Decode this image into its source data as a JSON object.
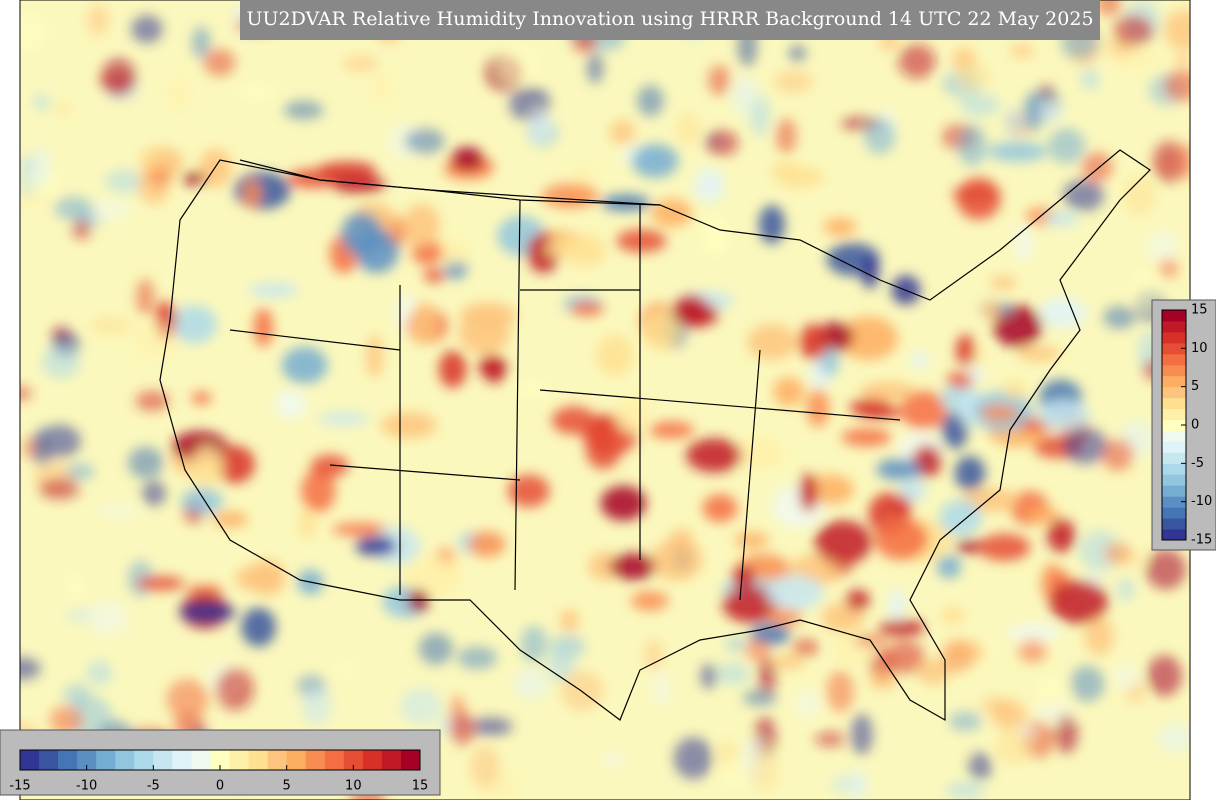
{
  "title": "UU2DVAR Relative Humidity Innovation using HRRR Background 14 UTC 22 May 2025",
  "colorbar": {
    "lim": [
      -15,
      15
    ],
    "ticks": [
      -15,
      -10,
      -5,
      0,
      5,
      10,
      15
    ],
    "colormap": [
      "#313695",
      "#3a559f",
      "#4575b4",
      "#5b8fc3",
      "#74add1",
      "#92c5de",
      "#abd9e9",
      "#c6e6f0",
      "#e0f3f8",
      "#f0f9f0",
      "#ffffbf",
      "#fff0a8",
      "#fee090",
      "#fdc47d",
      "#fdae61",
      "#f88d52",
      "#f46d43",
      "#e54e35",
      "#d73027",
      "#c01a27",
      "#a50026"
    ]
  }
}
